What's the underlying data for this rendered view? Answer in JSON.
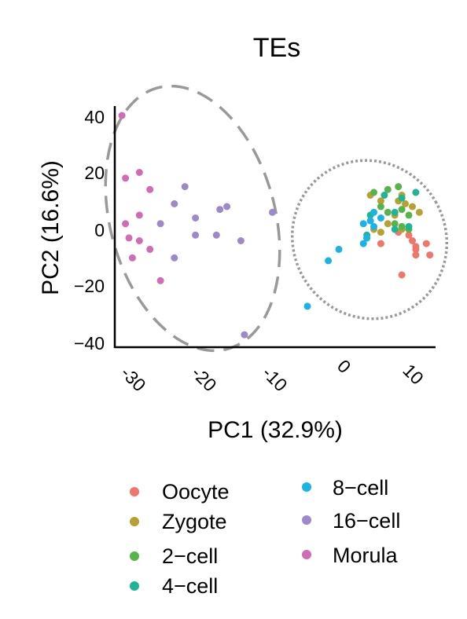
{
  "chart_data": {
    "type": "scatter",
    "title": "TEs",
    "xlabel": "PC1 (32.9%)",
    "ylabel": "PC2 (16.6%)",
    "xlim": [
      -33,
      14
    ],
    "ylim": [
      -42,
      43
    ],
    "x_ticks": [
      "-30",
      "-20",
      "-10",
      "0",
      "10"
    ],
    "y_ticks": [
      "40",
      "20",
      "0",
      "−20",
      "−40"
    ],
    "grid": false,
    "legend_position": "bottom",
    "series": [
      {
        "name": "Oocyte",
        "color": "#F0756B",
        "points": [
          [
            8.5,
            -1
          ],
          [
            10,
            -2
          ],
          [
            10.5,
            -4
          ],
          [
            11,
            -6
          ],
          [
            12.5,
            -5
          ],
          [
            11,
            -7
          ],
          [
            13,
            -9
          ],
          [
            11,
            -9
          ],
          [
            6,
            -5
          ],
          [
            9,
            -16
          ]
        ]
      },
      {
        "name": "Zygote",
        "color": "#B8A132",
        "points": [
          [
            4.5,
            12
          ],
          [
            6,
            10
          ],
          [
            8.5,
            10
          ],
          [
            9,
            12
          ],
          [
            9.5,
            9
          ],
          [
            10.5,
            8
          ],
          [
            8,
            5
          ],
          [
            11.5,
            6
          ],
          [
            7,
            2
          ],
          [
            5,
            0
          ],
          [
            6,
            -1
          ],
          [
            9,
            0
          ]
        ]
      },
      {
        "name": "2-cell",
        "color": "#56B44B",
        "points": [
          [
            5,
            13
          ],
          [
            7,
            14
          ],
          [
            8.5,
            15
          ],
          [
            6,
            8
          ],
          [
            7,
            6
          ],
          [
            9,
            7
          ],
          [
            10,
            5
          ],
          [
            8,
            2
          ],
          [
            9,
            1
          ],
          [
            4,
            -3
          ],
          [
            10,
            0
          ]
        ]
      },
      {
        "name": "4-cell",
        "color": "#1EB596",
        "points": [
          [
            6.5,
            12
          ],
          [
            9,
            11
          ],
          [
            11,
            13
          ],
          [
            8,
            6
          ],
          [
            4.5,
            5
          ],
          [
            8,
            0
          ],
          [
            10,
            1
          ],
          [
            4,
            -2
          ]
        ]
      },
      {
        "name": "8-cell",
        "color": "#1BB2E5",
        "points": [
          [
            4.5,
            3
          ],
          [
            5,
            6
          ],
          [
            5,
            1
          ],
          [
            3.5,
            2
          ],
          [
            3.5,
            -5
          ],
          [
            4,
            -3
          ],
          [
            6,
            4
          ],
          [
            0,
            -7
          ],
          [
            -1.5,
            -11
          ],
          [
            -4.5,
            -27
          ]
        ]
      },
      {
        "name": "16-cell",
        "color": "#9B8AC7",
        "points": [
          [
            -22,
            15
          ],
          [
            -17,
            7
          ],
          [
            -16,
            8
          ],
          [
            -23.5,
            9
          ],
          [
            -20.5,
            4
          ],
          [
            -25.5,
            2
          ],
          [
            -9.5,
            6
          ],
          [
            -20.5,
            -2
          ],
          [
            -17.5,
            -2
          ],
          [
            -14,
            -4
          ],
          [
            -23.5,
            -10
          ],
          [
            -13.5,
            -37
          ]
        ]
      },
      {
        "name": "Morula",
        "color": "#D06BB5",
        "points": [
          [
            -31,
            40
          ],
          [
            -30.5,
            18
          ],
          [
            -28.5,
            20
          ],
          [
            -27,
            14
          ],
          [
            -28.5,
            5
          ],
          [
            -30.5,
            2
          ],
          [
            -30,
            -3
          ],
          [
            -28.5,
            -4
          ],
          [
            -29.5,
            -10
          ],
          [
            -27,
            -7
          ],
          [
            -25.5,
            -18
          ]
        ]
      }
    ],
    "legend": [
      {
        "label": "Oocyte",
        "color": "#F0756B"
      },
      {
        "label": "Zygote",
        "color": "#B8A132"
      },
      {
        "label": "2−cell",
        "color": "#56B44B"
      },
      {
        "label": "4−cell",
        "color": "#1EB596"
      },
      {
        "label": "8−cell",
        "color": "#1BB2E5"
      },
      {
        "label": "16−cell",
        "color": "#9B8AC7"
      },
      {
        "label": "Morula",
        "color": "#D06BB5"
      }
    ],
    "annotations": [
      {
        "type": "ellipse",
        "style": "dashed",
        "encloses": [
          "16-cell",
          "Morula"
        ],
        "color": "#999999"
      },
      {
        "type": "ellipse",
        "style": "dotted",
        "encloses": [
          "Oocyte",
          "Zygote",
          "2-cell",
          "4-cell",
          "8-cell"
        ],
        "color": "#999999"
      }
    ]
  }
}
